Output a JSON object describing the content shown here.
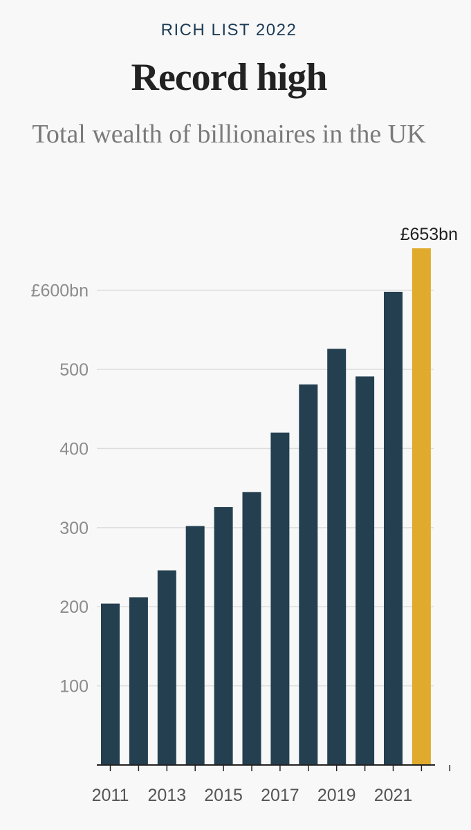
{
  "header": {
    "kicker": "RICH LIST 2022",
    "title": "Record high",
    "subtitle": "Total wealth of billionaires in the UK"
  },
  "colors": {
    "bar": "#243f50",
    "highlight": "#e0ab2c",
    "grid": "#dcdcdc",
    "axis": "#222222"
  },
  "chart_data": {
    "type": "bar",
    "title": "Record high",
    "subtitle": "Total wealth of billionaires in the UK",
    "xlabel": "",
    "ylabel": "",
    "categories": [
      "2011",
      "2012",
      "2013",
      "2014",
      "2015",
      "2016",
      "2017",
      "2018",
      "2019",
      "2020",
      "2021",
      "2022"
    ],
    "values": [
      204,
      212,
      246,
      302,
      326,
      345,
      420,
      481,
      526,
      491,
      598,
      653
    ],
    "highlight_index": 11,
    "ylim": [
      0,
      653
    ],
    "yticks": [
      {
        "value": 100,
        "label": "100"
      },
      {
        "value": 200,
        "label": "200"
      },
      {
        "value": 300,
        "label": "300"
      },
      {
        "value": 400,
        "label": "400"
      },
      {
        "value": 500,
        "label": "500"
      },
      {
        "value": 600,
        "label": "£600bn"
      }
    ],
    "xtick_labels": [
      {
        "index": 0,
        "label": "2011"
      },
      {
        "index": 2,
        "label": "2013"
      },
      {
        "index": 4,
        "label": "2015"
      },
      {
        "index": 6,
        "label": "2017"
      },
      {
        "index": 8,
        "label": "2019"
      },
      {
        "index": 10,
        "label": "2021"
      }
    ],
    "annotation": {
      "index": 11,
      "label": "£653bn"
    },
    "grid": true
  }
}
